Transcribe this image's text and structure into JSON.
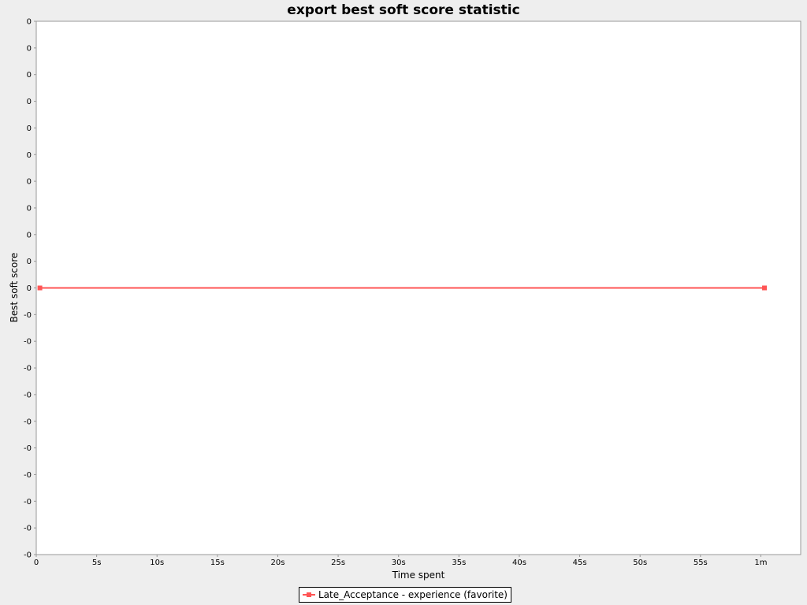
{
  "chart_data": {
    "type": "line",
    "title": "export best soft score statistic",
    "xlabel": "Time spent",
    "ylabel": "Best soft score",
    "x_ticks": [
      {
        "value": 0,
        "label": "0"
      },
      {
        "value": 5,
        "label": "5s"
      },
      {
        "value": 10,
        "label": "10s"
      },
      {
        "value": 15,
        "label": "15s"
      },
      {
        "value": 20,
        "label": "20s"
      },
      {
        "value": 25,
        "label": "25s"
      },
      {
        "value": 30,
        "label": "30s"
      },
      {
        "value": 35,
        "label": "35s"
      },
      {
        "value": 40,
        "label": "40s"
      },
      {
        "value": 45,
        "label": "45s"
      },
      {
        "value": 50,
        "label": "50s"
      },
      {
        "value": 55,
        "label": "55s"
      },
      {
        "value": 60,
        "label": "1m"
      }
    ],
    "y_ticks": [
      "0",
      "0",
      "0",
      "0",
      "0",
      "0",
      "0",
      "0",
      "0",
      "0",
      "0",
      "-0",
      "-0",
      "-0",
      "-0",
      "-0",
      "-0",
      "-0",
      "-0",
      "-0",
      "-0"
    ],
    "xlim": [
      0,
      63.3
    ],
    "ylim": [
      -10,
      10
    ],
    "grid": false,
    "legend_placement": "bottom-center",
    "series": [
      {
        "name": "Late_Acceptance - experience (favorite)",
        "color": "#ff5555",
        "x": [
          0.3,
          60.3
        ],
        "y": [
          0,
          0
        ]
      }
    ]
  }
}
